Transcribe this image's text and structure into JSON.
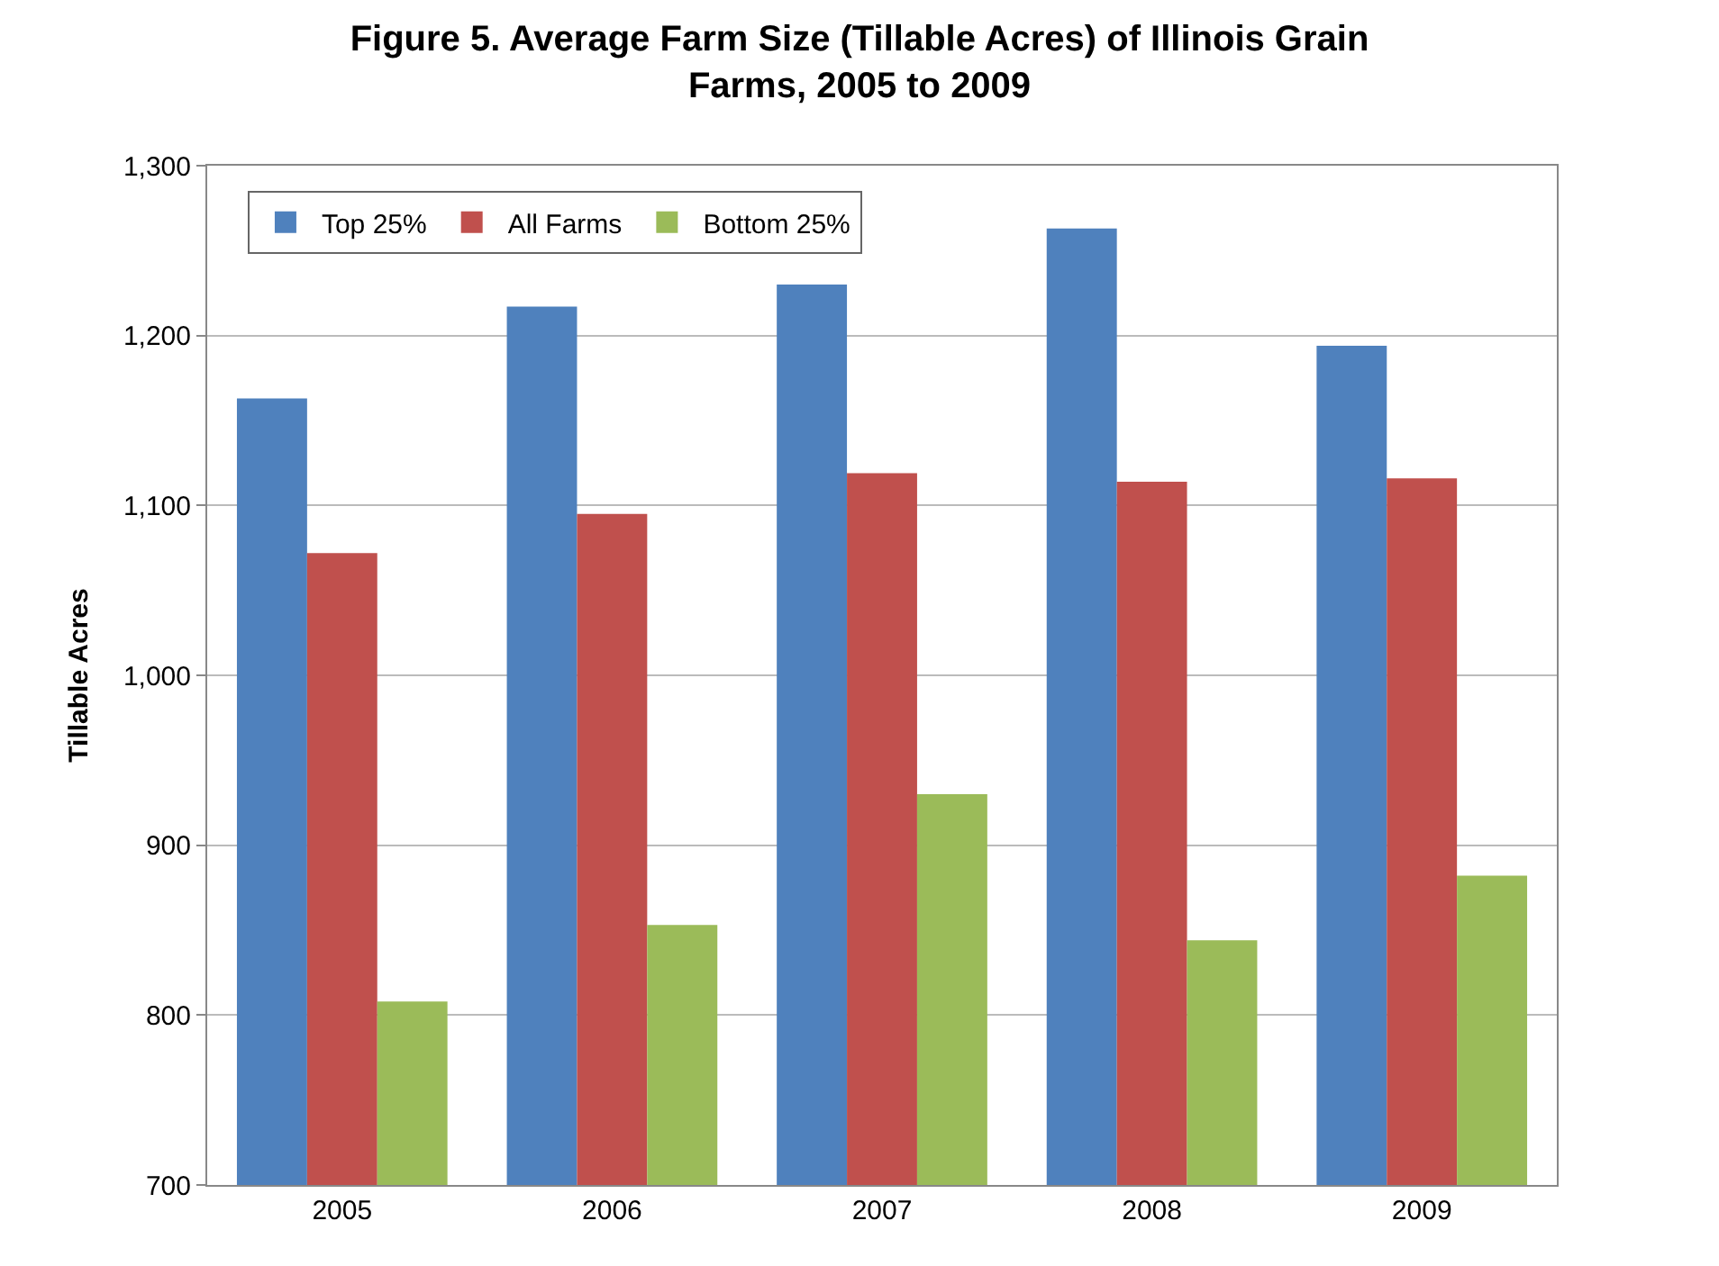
{
  "chart_data": {
    "type": "bar",
    "title": "Figure 5. Average Farm Size (Tillable Acres) of Illinois Grain Farms, 2005 to 2009",
    "ylabel": "Tillable Acres",
    "categories": [
      "2005",
      "2006",
      "2007",
      "2008",
      "2009"
    ],
    "series": [
      {
        "name": "Top 25%",
        "color": "#4f81bd",
        "values": [
          1163,
          1217,
          1230,
          1263,
          1194
        ]
      },
      {
        "name": "All Farms",
        "color": "#c0504d",
        "values": [
          1072,
          1095,
          1119,
          1114,
          1116
        ]
      },
      {
        "name": "Bottom 25%",
        "color": "#9bbb59",
        "values": [
          808,
          853,
          930,
          844,
          882
        ]
      }
    ],
    "ylim": [
      700,
      1300
    ],
    "yticks": [
      {
        "value": 700,
        "label": "700"
      },
      {
        "value": 800,
        "label": "800"
      },
      {
        "value": 900,
        "label": "900"
      },
      {
        "value": 1000,
        "label": "1,000"
      },
      {
        "value": 1100,
        "label": "1,100"
      },
      {
        "value": 1200,
        "label": "1,200"
      },
      {
        "value": 1300,
        "label": "1,300"
      }
    ],
    "grid": "y",
    "legend": "top left"
  }
}
